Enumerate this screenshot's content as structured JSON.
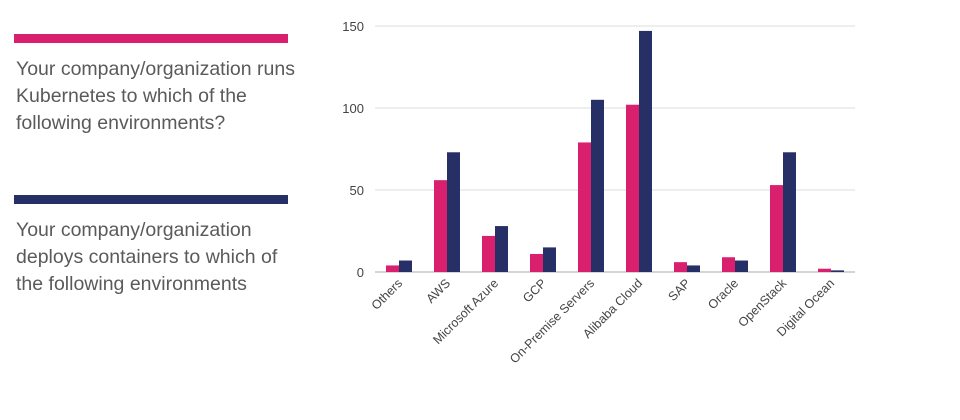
{
  "legend": {
    "series1_text": "Your company/organization runs Kubernetes to which of the following environments?",
    "series2_text": "Your company/organization deploys containers to which of the following environments"
  },
  "colors": {
    "series1": "#d9206e",
    "series2": "#262f66",
    "grid": "#dddddd"
  },
  "chart_data": {
    "type": "bar",
    "title": "",
    "xlabel": "",
    "ylabel": "",
    "ylim": [
      0,
      150
    ],
    "yticks": [
      0,
      50,
      100,
      150
    ],
    "grid": true,
    "categories": [
      "Others",
      "AWS",
      "Microsoft Azure",
      "GCP",
      "On-Premise Servers",
      "Alibaba Cloud",
      "SAP",
      "Oracle",
      "OpenStack",
      "Digital Ocean"
    ],
    "series": [
      {
        "values": [
          4,
          56,
          22,
          11,
          79,
          102,
          6,
          9,
          53,
          2
        ]
      },
      {
        "values": [
          7,
          73,
          28,
          15,
          105,
          147,
          4,
          7,
          73,
          1
        ]
      }
    ]
  }
}
